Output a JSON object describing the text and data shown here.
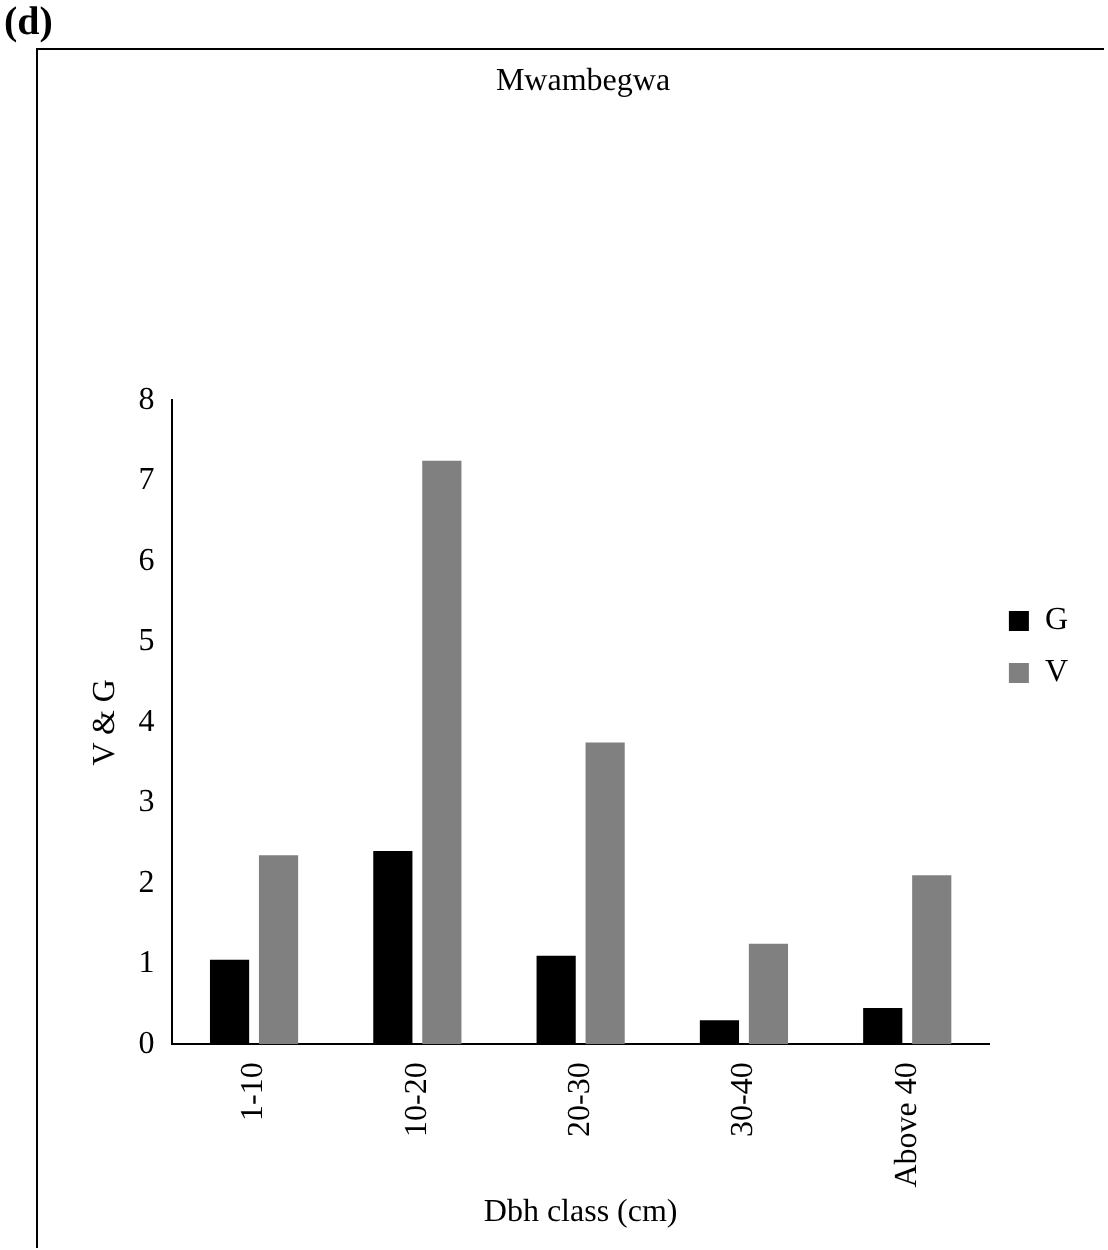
{
  "chart_data": {
    "type": "bar",
    "title": "Mwambegwa",
    "xlabel": "Dbh class (cm)",
    "ylabel": "V & G",
    "annotations": [
      "(d)"
    ],
    "categories": [
      "1-10",
      "10-20",
      "20-30",
      "30-40",
      "Above 40"
    ],
    "series": [
      {
        "name": "G",
        "color": "#000000",
        "values": [
          1.05,
          2.4,
          1.1,
          0.3,
          0.45
        ]
      },
      {
        "name": "V",
        "color": "#808080",
        "values": [
          2.35,
          7.25,
          3.75,
          1.25,
          2.1
        ]
      }
    ],
    "ylim": [
      0,
      8
    ],
    "yticks": [
      0,
      1,
      2,
      3,
      4,
      5,
      6,
      7,
      8
    ],
    "grid": false,
    "legend": "right"
  }
}
